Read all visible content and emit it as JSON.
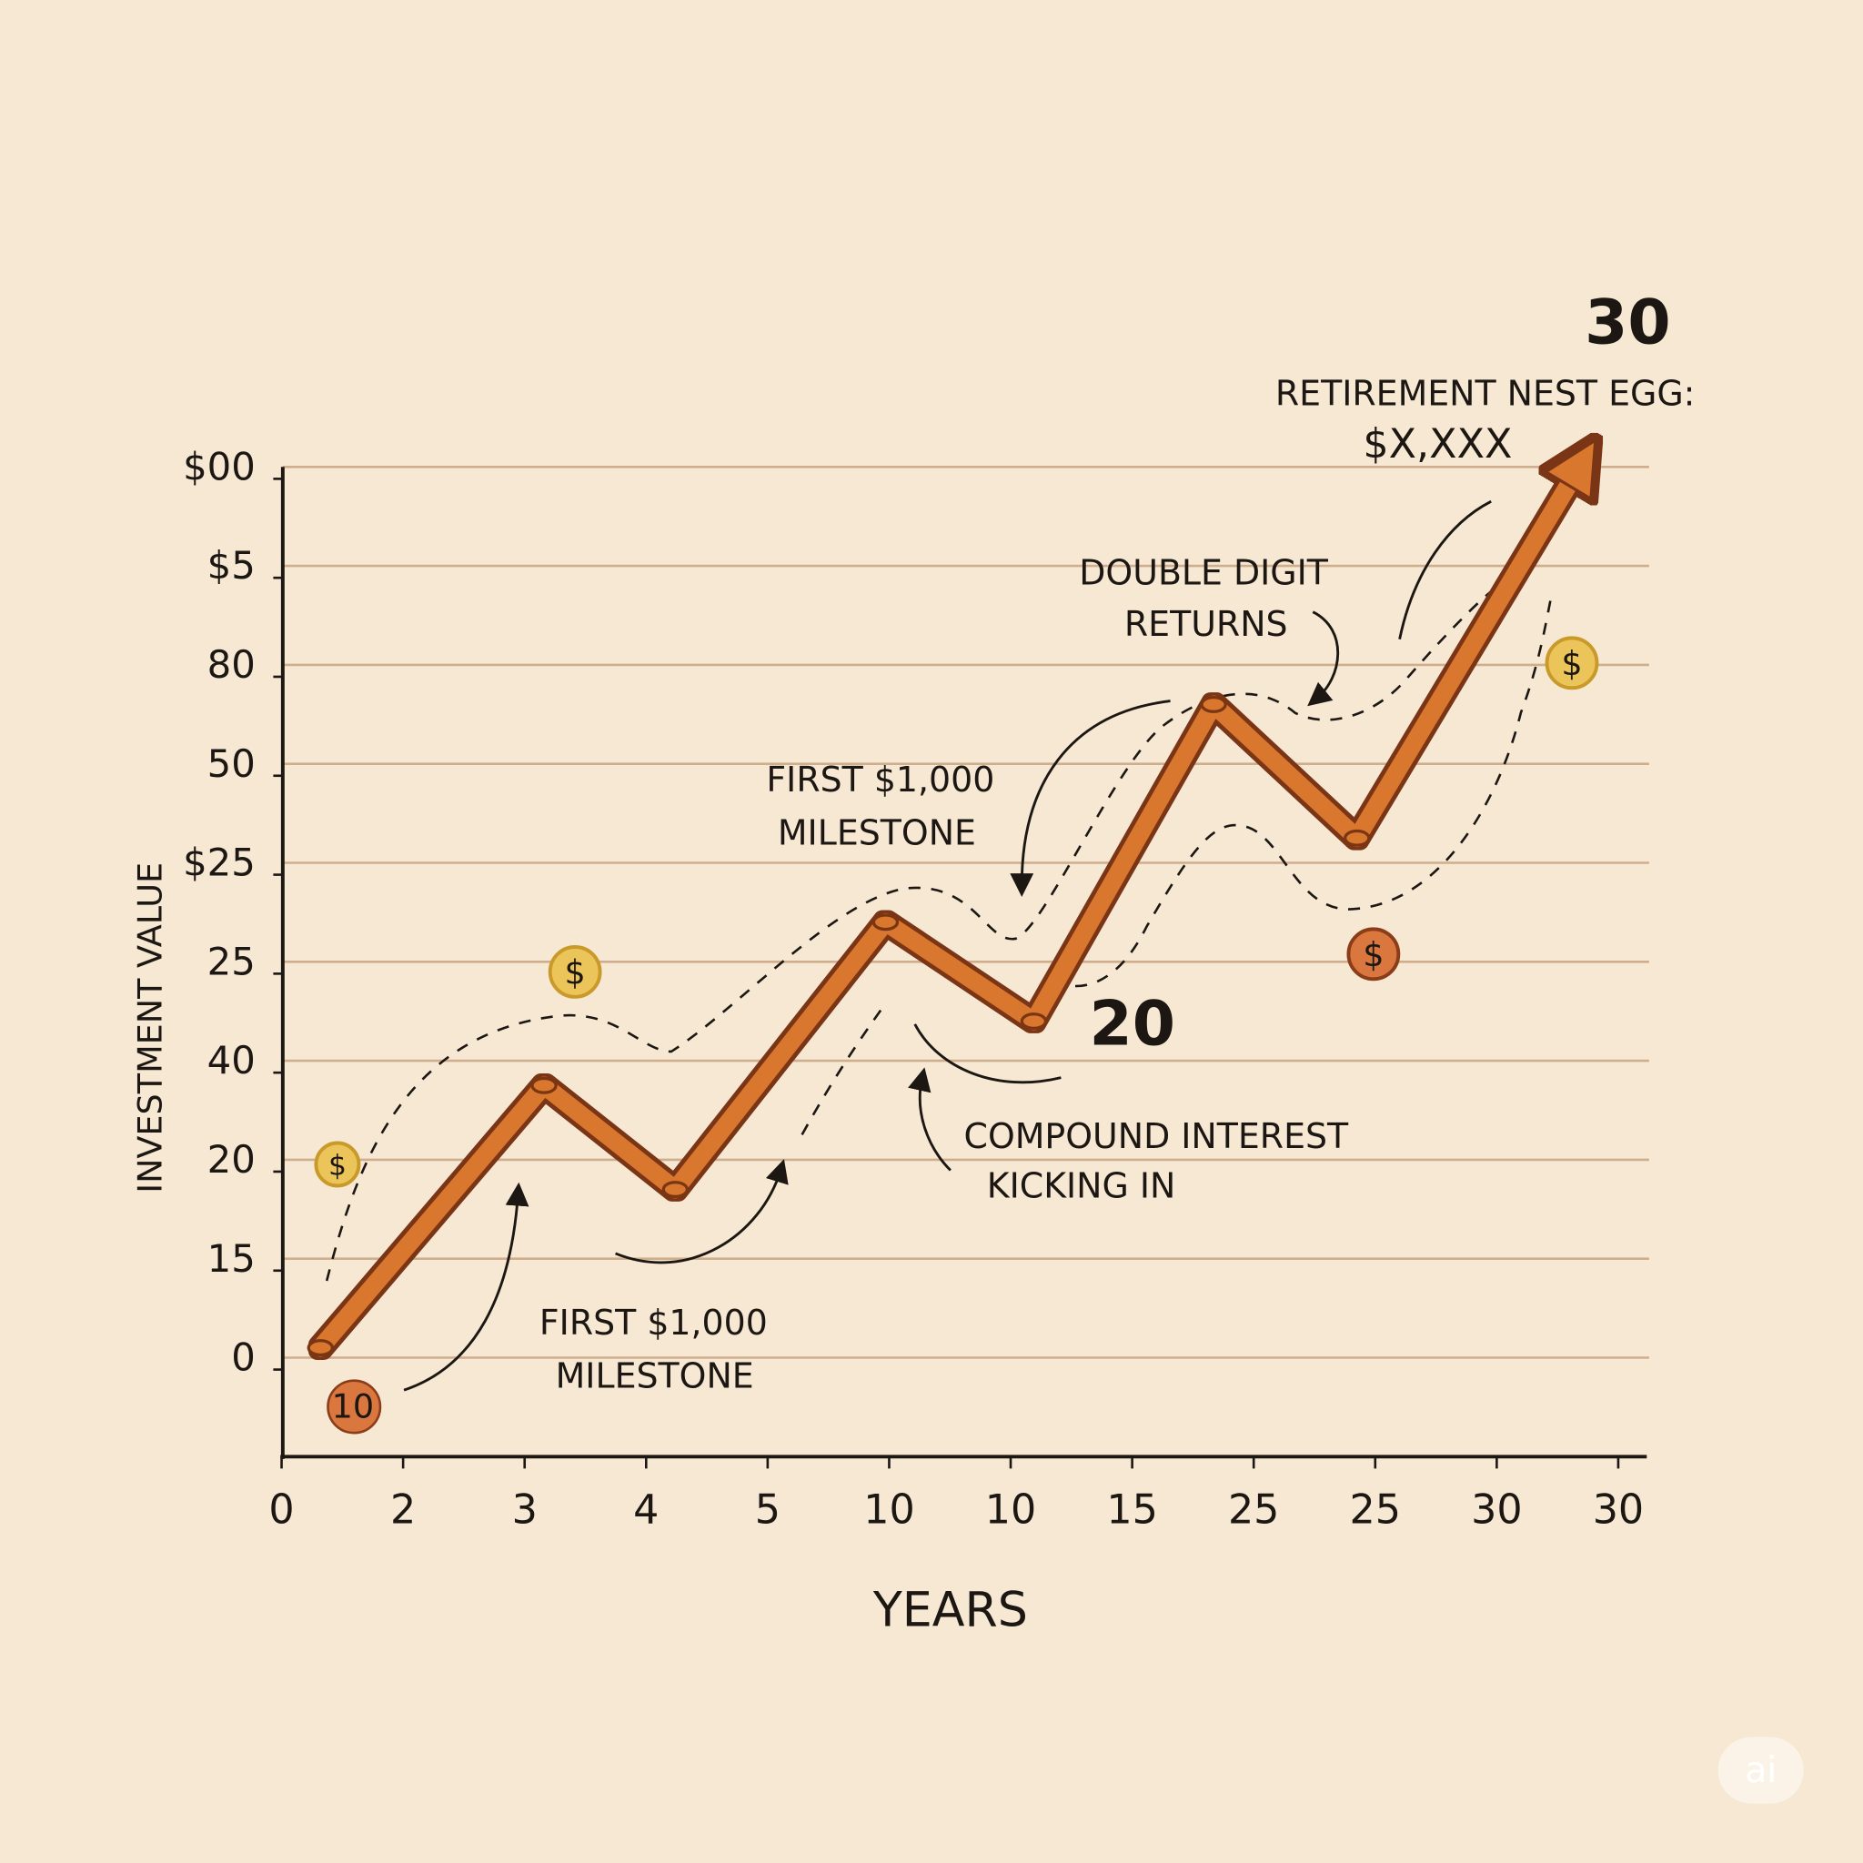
{
  "chart_data": {
    "type": "line",
    "xlabel": "YEARS",
    "ylabel": "INVESTMENT VALUE",
    "xlim": [
      0,
      11
    ],
    "ylim": [
      -1,
      9
    ],
    "xticks": [
      0,
      {
        "value": 1,
        "label": "2"
      },
      {
        "value": 2,
        "label": "3"
      },
      {
        "value": 3,
        "label": "4"
      },
      {
        "value": 4,
        "label": "5"
      },
      {
        "value": 5,
        "label": "10"
      },
      {
        "value": 6,
        "label": "10"
      },
      {
        "value": 7,
        "label": "15"
      },
      {
        "value": 8,
        "label": "25"
      },
      {
        "value": 9,
        "label": "25"
      },
      {
        "value": 10,
        "label": "30"
      },
      {
        "value": 11,
        "label": "30"
      }
    ],
    "yticks": [
      0,
      {
        "value": 1,
        "label": "15"
      },
      {
        "value": 2,
        "label": "20"
      },
      {
        "value": 3,
        "label": "40"
      },
      {
        "value": 4,
        "label": "25"
      },
      {
        "value": 5,
        "label": "$25"
      },
      {
        "value": 6,
        "label": "50"
      },
      {
        "value": 7,
        "label": "80"
      },
      {
        "value": 8,
        "label": "$5"
      },
      {
        "value": 9,
        "label": "$00"
      }
    ],
    "grid": true,
    "series": [
      {
        "color": "#d9772f",
        "x": [
          0.32,
          2.16,
          3.24,
          4.97,
          6.19,
          7.67,
          8.85,
          10.68
        ],
        "values": [
          0.1,
          2.75,
          1.7,
          4.4,
          3.4,
          6.6,
          5.25,
          9.0
        ]
      }
    ]
  },
  "annotations": {
    "final": "30",
    "nest_egg": [
      "RETIREMENT NEST EGG:",
      "$X,XXX"
    ],
    "double_digit": [
      "DOUBLE DIGIT",
      "RETURNS"
    ],
    "milestone_upper": [
      "FIRST $1,000",
      "MILESTONE"
    ],
    "mid": "20",
    "compound": [
      "COMPOUND INTEREST",
      "KICKING IN"
    ],
    "milestone_lower": [
      "FIRST $1,000",
      "MILESTONE"
    ],
    "start_badge": "10",
    "coins": [
      "$",
      "$",
      "$",
      "$"
    ]
  },
  "watermark": "ai"
}
